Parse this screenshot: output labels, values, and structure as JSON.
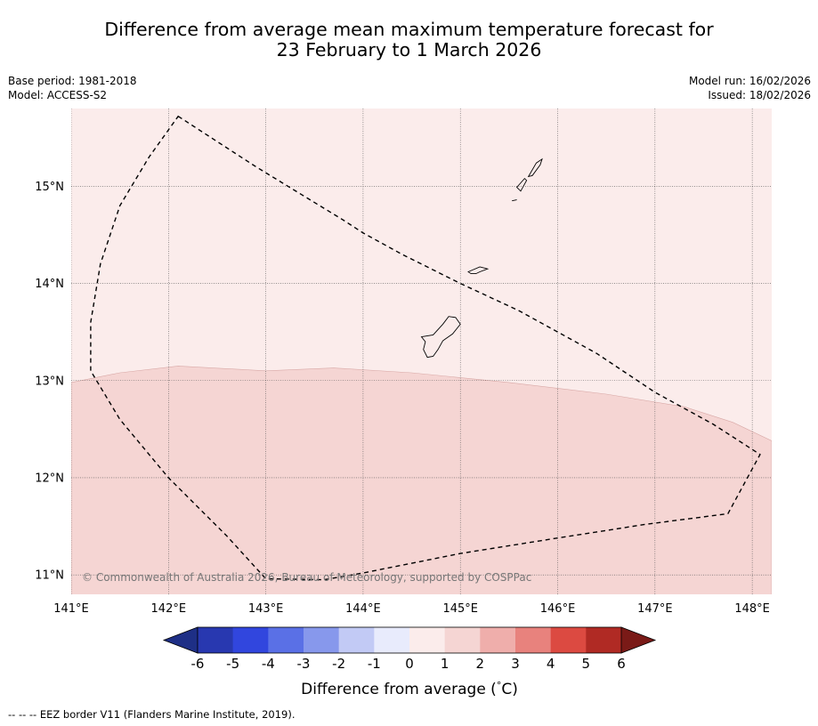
{
  "title": {
    "line1": "Difference from average mean maximum temperature forecast for",
    "line2": "23 February to 1 March 2026"
  },
  "meta_left": {
    "base_period": "Base period: 1981-2018",
    "model": "Model: ACCESS-S2"
  },
  "meta_right": {
    "model_run": "Model run: 16/02/2026",
    "issued": "Issued: 18/02/2026"
  },
  "map": {
    "lon_range": [
      141.0,
      148.2
    ],
    "lat_range": [
      10.8,
      15.8
    ],
    "lon_ticks": [
      {
        "value": 141,
        "label": "141°E"
      },
      {
        "value": 142,
        "label": "142°E"
      },
      {
        "value": 143,
        "label": "143°E"
      },
      {
        "value": 144,
        "label": "144°E"
      },
      {
        "value": 145,
        "label": "145°E"
      },
      {
        "value": 146,
        "label": "146°E"
      },
      {
        "value": 147,
        "label": "147°E"
      },
      {
        "value": 148,
        "label": "148°E"
      }
    ],
    "lat_ticks": [
      {
        "value": 15,
        "label": "15°N"
      },
      {
        "value": 14,
        "label": "14°N"
      },
      {
        "value": 13,
        "label": "13°N"
      },
      {
        "value": 12,
        "label": "12°N"
      },
      {
        "value": 11,
        "label": "11°N"
      }
    ],
    "regions": [
      {
        "name": "0 to 1 °C",
        "color": "#fbeceb"
      },
      {
        "name": "1 to 2 °C",
        "color": "#f5d5d3"
      }
    ],
    "anomaly_boundary": [
      [
        141.0,
        12.98
      ],
      [
        141.5,
        13.08
      ],
      [
        142.1,
        13.15
      ],
      [
        143.0,
        13.1
      ],
      [
        143.7,
        13.13
      ],
      [
        144.5,
        13.08
      ],
      [
        145.5,
        12.98
      ],
      [
        146.5,
        12.86
      ],
      [
        147.3,
        12.73
      ],
      [
        147.8,
        12.57
      ],
      [
        148.2,
        12.38
      ]
    ],
    "eez_border": [
      [
        142.1,
        15.72
      ],
      [
        142.9,
        15.2
      ],
      [
        143.8,
        14.65
      ],
      [
        144.0,
        14.52
      ],
      [
        144.4,
        14.3
      ],
      [
        145.0,
        14.0
      ],
      [
        145.6,
        13.72
      ],
      [
        146.4,
        13.28
      ],
      [
        147.0,
        12.88
      ],
      [
        147.6,
        12.55
      ],
      [
        148.08,
        12.24
      ],
      [
        147.75,
        11.63
      ],
      [
        146.9,
        11.52
      ],
      [
        146.0,
        11.38
      ],
      [
        145.0,
        11.22
      ],
      [
        144.0,
        11.02
      ],
      [
        143.6,
        10.95
      ],
      [
        143.0,
        10.96
      ],
      [
        142.6,
        11.4
      ],
      [
        142.0,
        12.0
      ],
      [
        141.5,
        12.6
      ],
      [
        141.2,
        13.1
      ],
      [
        141.2,
        13.6
      ],
      [
        141.3,
        14.2
      ],
      [
        141.5,
        14.8
      ],
      [
        141.8,
        15.3
      ],
      [
        142.1,
        15.72
      ]
    ],
    "islands": [
      {
        "name": "Guam",
        "coords": [
          [
            144.95,
            13.65
          ],
          [
            145.0,
            13.58
          ],
          [
            144.92,
            13.48
          ],
          [
            144.82,
            13.41
          ],
          [
            144.77,
            13.32
          ],
          [
            144.72,
            13.25
          ],
          [
            144.66,
            13.24
          ],
          [
            144.62,
            13.32
          ],
          [
            144.64,
            13.4
          ],
          [
            144.6,
            13.45
          ],
          [
            144.72,
            13.47
          ],
          [
            144.82,
            13.58
          ],
          [
            144.88,
            13.66
          ],
          [
            144.95,
            13.65
          ]
        ]
      },
      {
        "name": "Rota",
        "coords": [
          [
            145.08,
            14.12
          ],
          [
            145.2,
            14.17
          ],
          [
            145.28,
            14.15
          ],
          [
            145.2,
            14.12
          ],
          [
            145.16,
            14.1
          ],
          [
            145.11,
            14.1
          ],
          [
            145.08,
            14.12
          ]
        ]
      },
      {
        "name": "Tinian",
        "coords": [
          [
            145.58,
            14.99
          ],
          [
            145.66,
            15.08
          ],
          [
            145.68,
            15.06
          ],
          [
            145.62,
            14.95
          ],
          [
            145.58,
            14.99
          ]
        ]
      },
      {
        "name": "Saipan",
        "coords": [
          [
            145.7,
            15.1
          ],
          [
            145.78,
            15.24
          ],
          [
            145.84,
            15.28
          ],
          [
            145.82,
            15.22
          ],
          [
            145.74,
            15.11
          ],
          [
            145.7,
            15.1
          ]
        ]
      },
      {
        "name": "Aguijan",
        "coords": [
          [
            145.53,
            14.85
          ],
          [
            145.58,
            14.86
          ]
        ]
      }
    ],
    "copyright": "© Commonwealth of Australia 2026, Bureau of Meteorology, supported by COSPPac"
  },
  "colorbar": {
    "title": "Difference from average (°C)",
    "title_prefix": "Difference from average (",
    "title_unit": "°C",
    "title_suffix": ")",
    "under_color": "#1e2f86",
    "over_color": "#7a1a17",
    "bins": [
      {
        "lo": -6,
        "hi": -5,
        "color": "#2838b0"
      },
      {
        "lo": -5,
        "hi": -4,
        "color": "#3146de"
      },
      {
        "lo": -4,
        "hi": -3,
        "color": "#5a70e6"
      },
      {
        "lo": -3,
        "hi": -2,
        "color": "#8798ec"
      },
      {
        "lo": -2,
        "hi": -1,
        "color": "#c2caf5"
      },
      {
        "lo": -1,
        "hi": 0,
        "color": "#e8ebfc"
      },
      {
        "lo": 0,
        "hi": 1,
        "color": "#fbeceb"
      },
      {
        "lo": 1,
        "hi": 2,
        "color": "#f5d5d3"
      },
      {
        "lo": 2,
        "hi": 3,
        "color": "#efaeab"
      },
      {
        "lo": 3,
        "hi": 4,
        "color": "#e8827d"
      },
      {
        "lo": 4,
        "hi": 5,
        "color": "#dc4a41"
      },
      {
        "lo": 5,
        "hi": 6,
        "color": "#b02a24"
      }
    ],
    "ticks": [
      "-6",
      "-5",
      "-4",
      "-3",
      "-2",
      "-1",
      "0",
      "1",
      "2",
      "3",
      "4",
      "5",
      "6"
    ]
  },
  "footer": "-- -- -- EEZ border V11 (Flanders Marine Institute, 2019)."
}
